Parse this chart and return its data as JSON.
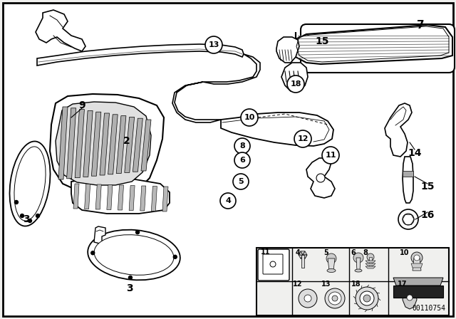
{
  "bg_color": "#f0f0ee",
  "white": "#ffffff",
  "black": "#000000",
  "diagram_id": "00110754",
  "gray_light": "#d8d8d8",
  "gray_mid": "#aaaaaa",
  "panel_bg": "#e8e8e4"
}
